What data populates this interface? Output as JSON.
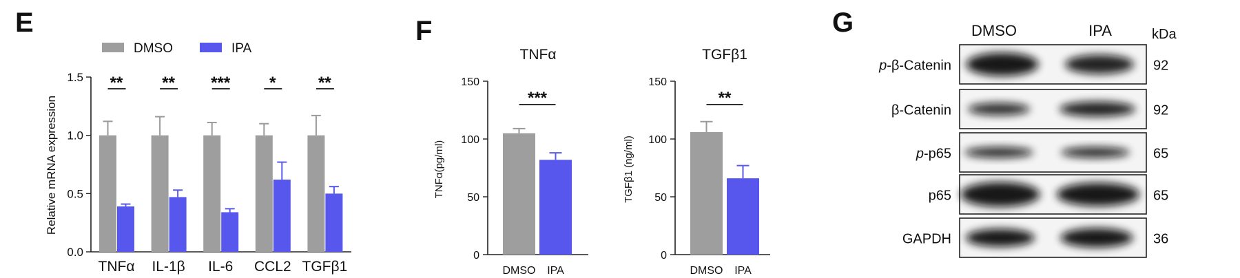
{
  "colors": {
    "control": "#9e9e9e",
    "treatment": "#5757ee"
  },
  "chart_data": [
    {
      "panel": "E",
      "type": "bar",
      "title": "",
      "ylabel": "Relative mRNA expression",
      "xlabel": "",
      "ylim": [
        0,
        1.5
      ],
      "yticks": [
        "0.0",
        "0.5",
        "1.0",
        "1.5"
      ],
      "legend": [
        "DMSO",
        "IPA"
      ],
      "legend_position": "top-left",
      "categories": [
        "TNFα",
        "IL-1β",
        "IL-6",
        "CCL2",
        "TGFβ1"
      ],
      "series": [
        {
          "name": "DMSO",
          "values": [
            1.0,
            1.0,
            1.0,
            1.0,
            1.0
          ],
          "errors": [
            0.12,
            0.16,
            0.11,
            0.1,
            0.17
          ]
        },
        {
          "name": "IPA",
          "values": [
            0.39,
            0.47,
            0.34,
            0.62,
            0.5
          ],
          "errors": [
            0.02,
            0.06,
            0.03,
            0.15,
            0.06
          ]
        }
      ],
      "significance": [
        "**",
        "**",
        "***",
        "*",
        "**"
      ]
    },
    {
      "panel": "F",
      "type": "bar",
      "title": "TNFα",
      "ylabel": "TNFα(pg/ml)",
      "xlabel": "",
      "ylim": [
        0,
        150
      ],
      "yticks": [
        "0",
        "50",
        "100",
        "150"
      ],
      "categories": [
        "DMSO",
        "IPA"
      ],
      "values": [
        105,
        82
      ],
      "errors": [
        4,
        6
      ],
      "significance": "***"
    },
    {
      "panel": "F",
      "type": "bar",
      "title": "TGFβ1",
      "ylabel": "TGFβ1 (ng/ml)",
      "xlabel": "",
      "ylim": [
        0,
        150
      ],
      "yticks": [
        "0",
        "50",
        "100",
        "150"
      ],
      "categories": [
        "DMSO",
        "IPA"
      ],
      "values": [
        106,
        66
      ],
      "errors": [
        9,
        11
      ],
      "significance": "**"
    }
  ],
  "blot": {
    "panel": "G",
    "lane_labels": [
      "DMSO",
      "IPA"
    ],
    "unit_label": "kDa",
    "rows": [
      {
        "label_prefix": "p",
        "label_rest": "-β-Catenin",
        "kda": "92"
      },
      {
        "label_prefix": "",
        "label_rest": "β-Catenin",
        "kda": "92"
      },
      {
        "label_prefix": "p",
        "label_rest": "-p65",
        "kda": "65"
      },
      {
        "label_prefix": "",
        "label_rest": "p65",
        "kda": "65"
      },
      {
        "label_prefix": "",
        "label_rest": "GAPDH",
        "kda": "36"
      }
    ]
  }
}
